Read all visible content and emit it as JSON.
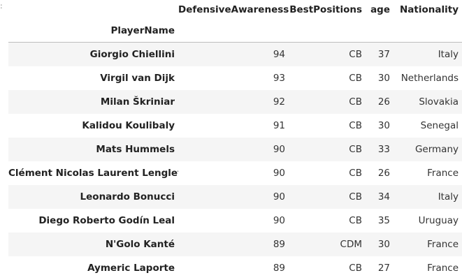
{
  "corner_mark": ":",
  "table": {
    "index_name": "PlayerName",
    "columns": [
      "DefensiveAwareness",
      "BestPositions",
      "age",
      "Nationality"
    ],
    "rows": [
      {
        "name": "Giorgio Chiellini",
        "defensive_awareness": "94",
        "best_positions": "CB",
        "age": "37",
        "nationality": "Italy"
      },
      {
        "name": "Virgil van Dijk",
        "defensive_awareness": "93",
        "best_positions": "CB",
        "age": "30",
        "nationality": "Netherlands"
      },
      {
        "name": "Milan Škriniar",
        "defensive_awareness": "92",
        "best_positions": "CB",
        "age": "26",
        "nationality": "Slovakia"
      },
      {
        "name": "Kalidou Koulibaly",
        "defensive_awareness": "91",
        "best_positions": "CB",
        "age": "30",
        "nationality": "Senegal"
      },
      {
        "name": "Mats Hummels",
        "defensive_awareness": "90",
        "best_positions": "CB",
        "age": "33",
        "nationality": "Germany"
      },
      {
        "name": "Clément Nicolas Laurent Lenglet",
        "defensive_awareness": "90",
        "best_positions": "CB",
        "age": "26",
        "nationality": "France"
      },
      {
        "name": "Leonardo Bonucci",
        "defensive_awareness": "90",
        "best_positions": "CB",
        "age": "34",
        "nationality": "Italy"
      },
      {
        "name": "Diego Roberto Godín Leal",
        "defensive_awareness": "90",
        "best_positions": "CB",
        "age": "35",
        "nationality": "Uruguay"
      },
      {
        "name": "N'Golo Kanté",
        "defensive_awareness": "89",
        "best_positions": "CDM",
        "age": "30",
        "nationality": "France"
      },
      {
        "name": "Aymeric Laporte",
        "defensive_awareness": "89",
        "best_positions": "CB",
        "age": "27",
        "nationality": "France"
      }
    ]
  }
}
